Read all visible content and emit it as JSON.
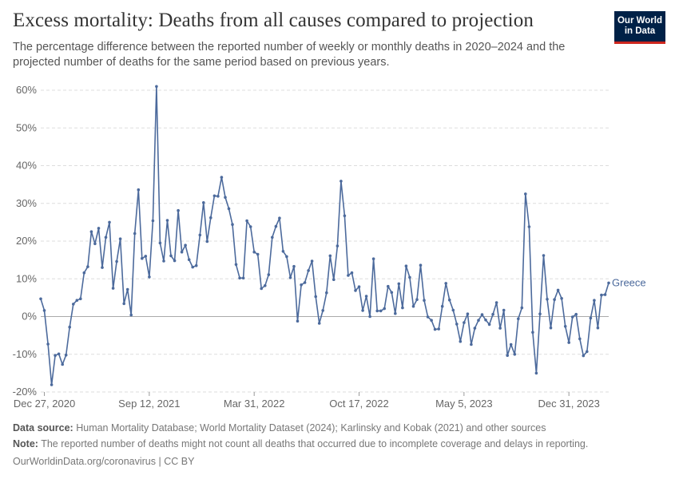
{
  "header": {
    "title": "Excess mortality: Deaths from all causes compared to projection",
    "subtitle": "The percentage difference between the reported number of weekly or monthly deaths in 2020–2024 and the projected number of deaths for the same period based on previous years.",
    "logo_line1": "Our World",
    "logo_line2": "in Data"
  },
  "footer": {
    "source_label": "Data source:",
    "source_text": "Human Mortality Database; World Mortality Dataset (2024); Karlinsky and Kobak (2021) and other sources",
    "note_label": "Note:",
    "note_text": "The reported number of deaths might not count all deaths that occurred due to incomplete coverage and delays in reporting.",
    "link": "OurWorldinData.org/coronavirus | CC BY"
  },
  "colors": {
    "line": "#4c6a9c",
    "grid": "#dddddd",
    "zero": "#aaaaaa",
    "tick": "#666666"
  },
  "chart_data": {
    "type": "line",
    "title": "Excess mortality: Deaths from all causes compared to projection",
    "xlabel": "",
    "ylabel": "",
    "ylim": [
      -20,
      60
    ],
    "y_ticks": [
      60,
      50,
      40,
      30,
      20,
      10,
      0,
      -10,
      -20
    ],
    "y_tick_labels": [
      "60%",
      "50%",
      "40%",
      "30%",
      "20%",
      "10%",
      "0%",
      "-10%",
      "-20%"
    ],
    "x_tick_labels": [
      "Dec 27, 2020",
      "Sep 12, 2021",
      "Mar 31, 2022",
      "Oct 17, 2022",
      "May 5, 2023",
      "Dec 31, 2023"
    ],
    "x_tick_indices": [
      1,
      30,
      59,
      88,
      117,
      146
    ],
    "grid": "horizontal dashed",
    "legend": "end-of-line label",
    "series": [
      {
        "name": "Greece",
        "values": [
          4.7,
          1.6,
          -7.3,
          -18.1,
          -10.3,
          -9.9,
          -12.7,
          -10.2,
          -2.8,
          3.3,
          4.3,
          4.7,
          11.6,
          13.2,
          22.5,
          19.3,
          23.4,
          13.0,
          21.0,
          25.0,
          7.5,
          14.6,
          20.6,
          3.4,
          7.2,
          0.4,
          22.0,
          33.6,
          15.4,
          16.0,
          10.5,
          25.4,
          61.0,
          19.5,
          14.7,
          25.5,
          16.1,
          14.8,
          28.1,
          17.1,
          18.9,
          15.1,
          13.1,
          13.5,
          21.6,
          30.2,
          19.9,
          26.2,
          32.0,
          31.9,
          36.9,
          31.6,
          28.6,
          24.4,
          13.8,
          10.2,
          10.2,
          25.4,
          23.8,
          17.1,
          16.5,
          7.4,
          8.2,
          11.1,
          21.0,
          23.9,
          26.1,
          17.3,
          15.9,
          10.3,
          13.3,
          -1.2,
          8.4,
          9.0,
          12.2,
          14.7,
          5.3,
          -1.8,
          1.6,
          6.3,
          16.1,
          9.8,
          18.7,
          35.9,
          26.7,
          10.9,
          11.6,
          6.9,
          7.9,
          1.6,
          5.4,
          0.0,
          15.3,
          1.5,
          1.5,
          2.1,
          8.0,
          6.4,
          0.8,
          8.7,
          2.3,
          13.4,
          10.4,
          2.7,
          4.5,
          13.6,
          4.3,
          -0.1,
          -1.0,
          -3.4,
          -3.3,
          2.7,
          8.8,
          4.4,
          1.7,
          -2.0,
          -6.6,
          -1.6,
          0.7,
          -7.4,
          -3.1,
          -1.0,
          0.5,
          -0.9,
          -2.1,
          0.6,
          3.7,
          -3.1,
          1.7,
          -10.3,
          -7.4,
          -10.0,
          -0.6,
          2.3,
          32.5,
          23.8,
          -4.2,
          -15.0,
          0.7,
          16.2,
          4.6,
          -3.0,
          4.5,
          7.0,
          4.8,
          -2.6,
          -6.9,
          -0.1,
          0.6,
          -5.9,
          -10.4,
          -9.3,
          -0.4,
          4.3,
          -3.0,
          5.7,
          5.8,
          8.9
        ]
      }
    ]
  }
}
